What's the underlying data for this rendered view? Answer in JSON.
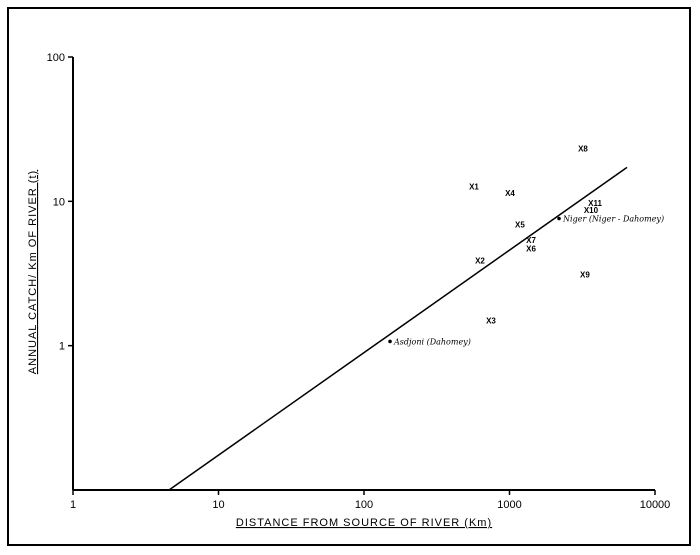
{
  "chart_data": {
    "type": "scatter",
    "x_scale": "log",
    "y_scale": "log",
    "xlabel": "DISTANCE FROM SOURCE OF RIVER (Km)",
    "ylabel": "ANNUAL CATCH/ Km OF RIVER (t)",
    "xlim": [
      1,
      10000
    ],
    "ylim": [
      0.1,
      100
    ],
    "x_ticks": [
      "1",
      "10",
      "100",
      "1000",
      "10000"
    ],
    "y_ticks": [
      "1",
      "10",
      "100"
    ],
    "grid": false,
    "points": [
      {
        "label": "X1",
        "x": 570,
        "y": 12.7
      },
      {
        "label": "X2",
        "x": 627,
        "y": 3.9
      },
      {
        "label": "X3",
        "x": 746,
        "y": 1.5
      },
      {
        "label": "X4",
        "x": 1008,
        "y": 11.4
      },
      {
        "label": "X5",
        "x": 1180,
        "y": 6.9
      },
      {
        "label": "X6",
        "x": 1406,
        "y": 4.7
      },
      {
        "label": "X7",
        "x": 1406,
        "y": 5.4
      },
      {
        "label": "X8",
        "x": 3200,
        "y": 23.3
      },
      {
        "label": "X9",
        "x": 3300,
        "y": 3.1
      },
      {
        "label": "X10",
        "x": 3630,
        "y": 8.7
      },
      {
        "label": "X11",
        "x": 3870,
        "y": 9.7
      }
    ],
    "named_points": [
      {
        "label": "Asdjoni (Dahomey)",
        "x": 151,
        "y": 1.07
      },
      {
        "label": "Niger (Niger - Dahomey)",
        "x": 2190,
        "y": 7.6
      }
    ],
    "fit_line": {
      "x": [
        4.57,
        6420
      ],
      "y": [
        0.1,
        17.2
      ]
    },
    "color": "#000000"
  }
}
